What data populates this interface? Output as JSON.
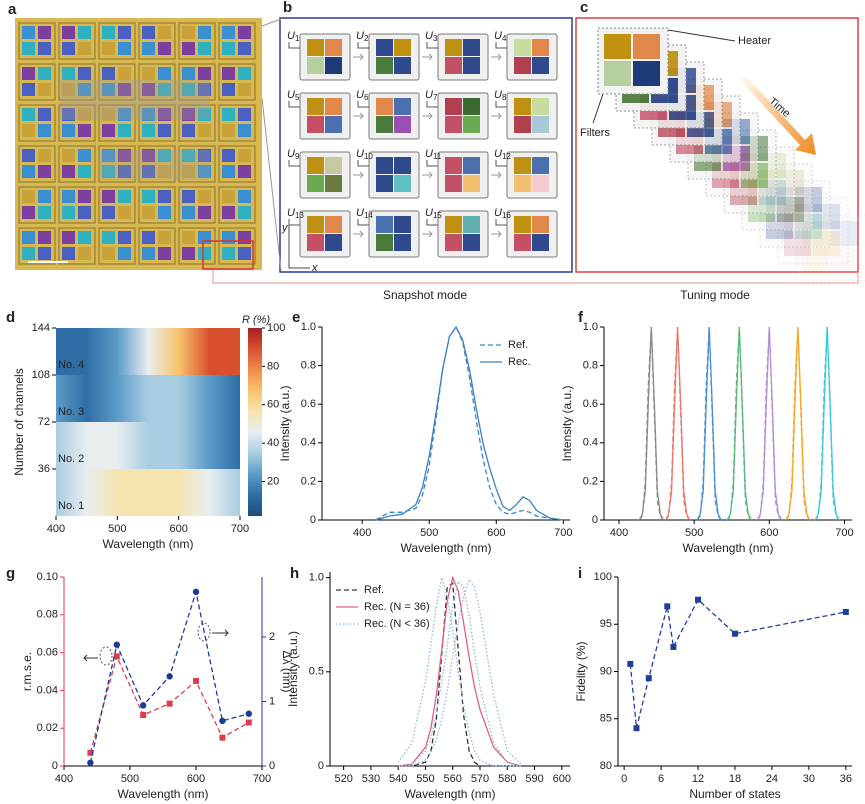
{
  "panel_labels": [
    "a",
    "b",
    "c",
    "d",
    "e",
    "f",
    "g",
    "h",
    "i"
  ],
  "snapshot": {
    "symbol": "U",
    "units": [
      "1",
      "2",
      "3",
      "4",
      "5",
      "6",
      "7",
      "8",
      "9",
      "10",
      "11",
      "12",
      "13",
      "14",
      "15",
      "16"
    ],
    "axis_y": "y",
    "axis_x": "x",
    "caption": "Snapshot mode"
  },
  "tuning": {
    "heater": "Heater",
    "filters": "Filters",
    "time": "Time",
    "caption": "Tuning mode"
  },
  "chart_data": [
    {
      "type": "heatmap",
      "xlabel": "Wavelength (nm)",
      "ylabel": "Number of channels",
      "x": [
        400,
        450,
        500,
        550,
        600,
        650,
        700
      ],
      "rows": [
        {
          "name": "No. 1",
          "values": [
            35,
            42,
            52,
            57,
            55,
            45,
            35
          ]
        },
        {
          "name": "No. 2",
          "values": [
            40,
            45,
            44,
            38,
            30,
            22,
            18
          ]
        },
        {
          "name": "No. 3",
          "values": [
            22,
            18,
            28,
            40,
            36,
            24,
            14
          ]
        },
        {
          "name": "No. 4",
          "values": [
            14,
            18,
            28,
            45,
            70,
            85,
            90
          ]
        }
      ],
      "xlim": [
        400,
        700
      ],
      "xticks": [
        400,
        500,
        600,
        700
      ],
      "ylim": [
        0,
        144
      ],
      "yticks": [
        36,
        72,
        108,
        144
      ],
      "zlim": [
        2,
        100
      ],
      "zticks": [
        20,
        40,
        60,
        80,
        100
      ],
      "zlabel": "R (%)"
    },
    {
      "type": "line",
      "xlabel": "Wavelength (nm)",
      "ylabel": "Intensity (a.u.)",
      "x": [
        420,
        440,
        460,
        480,
        490,
        500,
        510,
        520,
        530,
        540,
        550,
        560,
        570,
        580,
        590,
        600,
        610,
        620,
        630,
        640,
        650,
        660,
        680,
        700
      ],
      "series": [
        {
          "name": "Ref.",
          "color": "#3b82c4",
          "style": "dashed",
          "values": [
            0,
            0.04,
            0.04,
            0.06,
            0.13,
            0.28,
            0.52,
            0.78,
            0.95,
            1.0,
            0.92,
            0.74,
            0.52,
            0.32,
            0.17,
            0.08,
            0.04,
            0.03,
            0.04,
            0.05,
            0.04,
            0.02,
            0.01,
            0
          ]
        },
        {
          "name": "Rec.",
          "color": "#3b82c4",
          "style": "solid",
          "values": [
            0,
            0.02,
            0.03,
            0.08,
            0.17,
            0.33,
            0.55,
            0.78,
            0.95,
            1.0,
            0.93,
            0.78,
            0.58,
            0.4,
            0.27,
            0.16,
            0.07,
            0.05,
            0.08,
            0.12,
            0.1,
            0.05,
            0.01,
            0
          ]
        }
      ],
      "xlim": [
        340,
        710
      ],
      "xticks": [
        400,
        500,
        600,
        700
      ],
      "ylim": [
        0,
        1
      ],
      "yticks": [
        0,
        0.2,
        0.4,
        0.6,
        0.8,
        {
          "value": 1,
          "label": "1.0"
        }
      ],
      "legend": "upper right"
    },
    {
      "type": "line",
      "xlabel": "Wavelength (nm)",
      "ylabel": "Intensity (a.u.)",
      "series": [
        {
          "color": "#8a8a8a",
          "style": "dashed",
          "x": [
            427,
            431,
            435,
            439,
            443,
            447,
            451,
            455,
            459
          ],
          "values": [
            0,
            0.02,
            0.2,
            0.7,
            1.0,
            0.55,
            0.1,
            0.02,
            0
          ]
        },
        {
          "color": "#8a8a8a",
          "style": "solid",
          "x": [
            427,
            431,
            435,
            439,
            443,
            447,
            451,
            455,
            459
          ],
          "values": [
            0,
            0.03,
            0.15,
            0.6,
            1.0,
            0.6,
            0.15,
            0.03,
            0
          ]
        },
        {
          "color": "#e8776d",
          "style": "dashed",
          "x": [
            462,
            466,
            470,
            474,
            478,
            482,
            486,
            490,
            494
          ],
          "values": [
            0,
            0.02,
            0.2,
            0.7,
            1.0,
            0.55,
            0.1,
            0.02,
            0
          ]
        },
        {
          "color": "#e8776d",
          "style": "solid",
          "x": [
            462,
            466,
            470,
            474,
            478,
            482,
            486,
            490,
            494
          ],
          "values": [
            0,
            0.03,
            0.15,
            0.6,
            1.0,
            0.6,
            0.15,
            0.03,
            0
          ]
        },
        {
          "color": "#4a90d0",
          "style": "dashed",
          "x": [
            504,
            508,
            512,
            516,
            520,
            524,
            528,
            532,
            536
          ],
          "values": [
            0,
            0.02,
            0.2,
            0.7,
            1.0,
            0.55,
            0.1,
            0.02,
            0
          ]
        },
        {
          "color": "#4a90d0",
          "style": "solid",
          "x": [
            504,
            508,
            512,
            516,
            520,
            524,
            528,
            532,
            536
          ],
          "values": [
            0,
            0.03,
            0.15,
            0.6,
            1.0,
            0.6,
            0.15,
            0.03,
            0
          ]
        },
        {
          "color": "#5cb87a",
          "style": "dashed",
          "x": [
            544,
            548,
            552,
            556,
            560,
            564,
            568,
            572,
            576
          ],
          "values": [
            0,
            0.02,
            0.2,
            0.7,
            1.0,
            0.55,
            0.1,
            0.02,
            0
          ]
        },
        {
          "color": "#5cb87a",
          "style": "solid",
          "x": [
            544,
            548,
            552,
            556,
            560,
            564,
            568,
            572,
            576
          ],
          "values": [
            0,
            0.03,
            0.15,
            0.6,
            1.0,
            0.6,
            0.15,
            0.03,
            0
          ]
        },
        {
          "color": "#b48fd0",
          "style": "dashed",
          "x": [
            584,
            588,
            592,
            596,
            600,
            604,
            608,
            612,
            616
          ],
          "values": [
            0,
            0.02,
            0.2,
            0.7,
            1.0,
            0.55,
            0.1,
            0.02,
            0
          ]
        },
        {
          "color": "#b48fd0",
          "style": "solid",
          "x": [
            584,
            588,
            592,
            596,
            600,
            604,
            608,
            612,
            616
          ],
          "values": [
            0,
            0.03,
            0.15,
            0.6,
            1.0,
            0.6,
            0.15,
            0.03,
            0
          ]
        },
        {
          "color": "#f5a623",
          "style": "dashed",
          "x": [
            622,
            626,
            630,
            634,
            638,
            642,
            646,
            650,
            654
          ],
          "values": [
            0,
            0.02,
            0.2,
            0.7,
            1.0,
            0.55,
            0.1,
            0.02,
            0
          ]
        },
        {
          "color": "#f5a623",
          "style": "solid",
          "x": [
            622,
            626,
            630,
            634,
            638,
            642,
            646,
            650,
            654
          ],
          "values": [
            0,
            0.03,
            0.15,
            0.6,
            1.0,
            0.6,
            0.15,
            0.03,
            0
          ]
        },
        {
          "color": "#3cc8d8",
          "style": "dashed",
          "x": [
            661,
            665,
            669,
            673,
            677,
            681,
            685,
            689,
            693
          ],
          "values": [
            0,
            0.02,
            0.2,
            0.7,
            1.0,
            0.55,
            0.1,
            0.02,
            0
          ]
        },
        {
          "color": "#3cc8d8",
          "style": "solid",
          "x": [
            661,
            665,
            669,
            673,
            677,
            681,
            685,
            689,
            693
          ],
          "values": [
            0,
            0.03,
            0.15,
            0.6,
            1.0,
            0.6,
            0.15,
            0.03,
            0
          ]
        }
      ],
      "xlim": [
        380,
        710
      ],
      "xticks": [
        400,
        500,
        600,
        700
      ],
      "ylim": [
        0,
        1
      ],
      "yticks": [
        0,
        0.2,
        0.4,
        0.6,
        0.8,
        {
          "value": 1,
          "label": "1.0"
        }
      ]
    },
    {
      "type": "line",
      "markers": true,
      "xlabel": "Wavelength (nm)",
      "ylabel": "r.m.s.e.",
      "y2label": "Δλ (nm)",
      "x": [
        440,
        480,
        520,
        560,
        600,
        640,
        680
      ],
      "series": [
        {
          "color": "#e03a4e",
          "style": "dashed",
          "marker": "square",
          "values": [
            0.007,
            0.058,
            0.027,
            0.033,
            0.045,
            0.015,
            0.023
          ]
        },
        {
          "color": "#1a3a9c",
          "style": "dashed",
          "marker": "circle",
          "axis": "y2",
          "values": [
            0.05,
            1.88,
            0.94,
            1.39,
            2.7,
            0.7,
            0.81
          ]
        }
      ],
      "xlim": [
        400,
        700
      ],
      "xticks": [
        400,
        500,
        600,
        700
      ],
      "ylim": [
        0,
        0.1
      ],
      "yticks": [
        0,
        0.02,
        0.04,
        0.06,
        0.08,
        {
          "value": 0.1,
          "label": "0.10"
        }
      ],
      "y2lim": [
        0,
        2.93
      ],
      "y2ticks": [
        0,
        1,
        2
      ]
    },
    {
      "type": "line",
      "xlabel": "Wavelength (nm)",
      "ylabel": "Intensity (a.u.)",
      "x": [
        540,
        545,
        550,
        552,
        554,
        556,
        558,
        560,
        562,
        564,
        566,
        568,
        570,
        575,
        580,
        585
      ],
      "series": [
        {
          "name": "Ref.",
          "color": "#333333",
          "style": "dashed",
          "values": [
            0,
            0,
            0.02,
            0.08,
            0.25,
            0.6,
            0.95,
            0.97,
            0.62,
            0.27,
            0.08,
            0.02,
            0,
            0,
            0,
            0
          ]
        },
        {
          "name": "Rec. (N = 36)",
          "color": "#e0607e",
          "style": "solid",
          "values": [
            0,
            0.01,
            0.1,
            0.2,
            0.38,
            0.62,
            0.88,
            1.0,
            0.93,
            0.76,
            0.58,
            0.42,
            0.3,
            0.1,
            0.02,
            0
          ]
        },
        {
          "name": "Rec. (N < 36)",
          "color": "#8fb8e0",
          "style": "dotted",
          "values": [
            0.02,
            0.12,
            0.45,
            0.65,
            0.85,
            1.0,
            0.9,
            0.72,
            0.5,
            0.32,
            0.18,
            0.08,
            0.03,
            0,
            0,
            0
          ]
        },
        {
          "color": "#8fb8e0",
          "style": "dotted",
          "values": [
            0,
            0.01,
            0.08,
            0.15,
            0.28,
            0.45,
            0.64,
            0.85,
            0.98,
            0.95,
            0.8,
            0.6,
            0.42,
            0.12,
            0.02,
            0
          ]
        },
        {
          "color": "#8fb8e0",
          "style": "dotted",
          "values": [
            0,
            0,
            0.03,
            0.07,
            0.14,
            0.25,
            0.4,
            0.58,
            0.76,
            0.9,
            0.99,
            0.95,
            0.82,
            0.38,
            0.08,
            0.01
          ]
        }
      ],
      "xlim": [
        515,
        603
      ],
      "xticks": [
        520,
        530,
        540,
        550,
        560,
        570,
        580,
        590,
        600
      ],
      "ylim": [
        0,
        1.03
      ],
      "yticks": [
        0,
        0.5,
        {
          "value": 1,
          "label": "1.0"
        }
      ],
      "legend": "upper left"
    },
    {
      "type": "line",
      "markers": true,
      "xlabel": "Number of states",
      "ylabel": "Fidelity (%)",
      "x": [
        1,
        2,
        4,
        7,
        8,
        12,
        18,
        36
      ],
      "series": [
        {
          "color": "#1f3f99",
          "style": "dashed",
          "marker": "square",
          "values": [
            90.8,
            84,
            89.3,
            96.9,
            92.6,
            97.6,
            94,
            96.3
          ]
        }
      ],
      "xlim": [
        -1,
        37
      ],
      "xticks": [
        0,
        6,
        12,
        18,
        24,
        30,
        36
      ],
      "ylim": [
        80,
        100
      ],
      "yticks": [
        80,
        85,
        90,
        95,
        100
      ]
    }
  ]
}
